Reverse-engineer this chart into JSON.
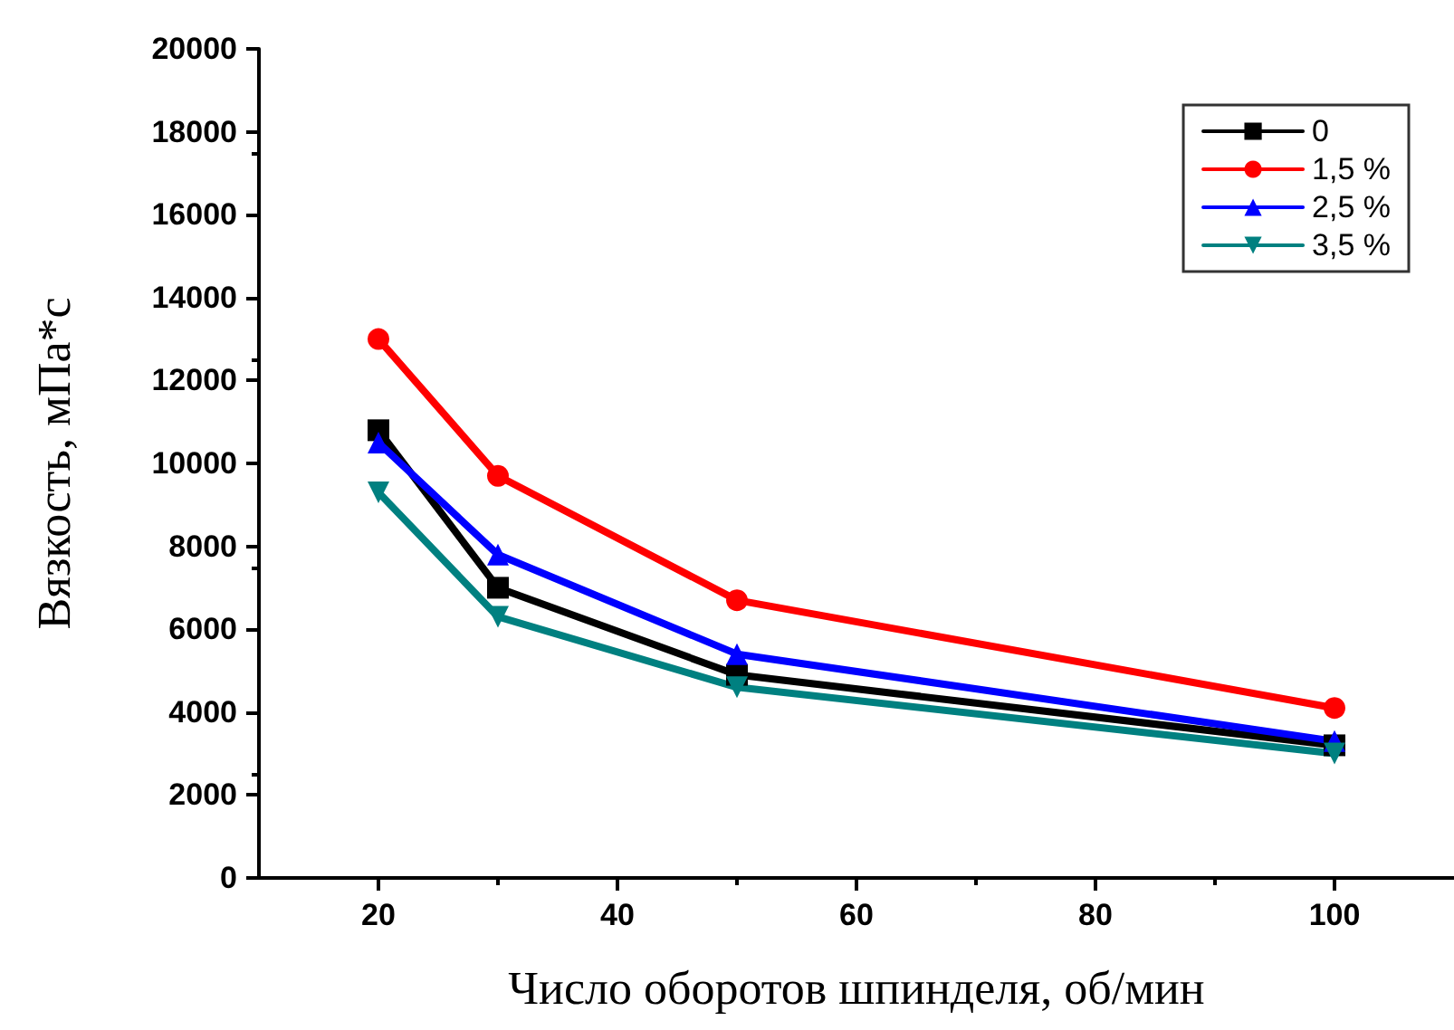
{
  "chart_data": {
    "type": "line",
    "xlabel": "Число оборотов шпинделя, об/мин",
    "ylabel": "Вязкость, мПа*с",
    "x": [
      20,
      30,
      50,
      100
    ],
    "series": [
      {
        "name": "0",
        "color": "#000000",
        "marker": "square",
        "values": [
          10800,
          7000,
          4900,
          3200
        ]
      },
      {
        "name": "1,5 %",
        "color": "#ff0000",
        "marker": "circle",
        "values": [
          13000,
          9700,
          6700,
          4100
        ]
      },
      {
        "name": "2,5 %",
        "color": "#0000ff",
        "marker": "triangle",
        "values": [
          10500,
          7800,
          5400,
          3300
        ]
      },
      {
        "name": "3,5 %",
        "color": "#008080",
        "marker": "triangle-down",
        "values": [
          9300,
          6300,
          4600,
          3000
        ]
      }
    ],
    "xlim": [
      10,
      110
    ],
    "xticks": [
      20,
      40,
      60,
      80,
      100
    ],
    "ylim": [
      0,
      20000
    ],
    "yticks": [
      0,
      2000,
      4000,
      6000,
      8000,
      10000,
      12000,
      14000,
      16000,
      18000,
      20000
    ],
    "grid": false,
    "legend": "top right"
  }
}
